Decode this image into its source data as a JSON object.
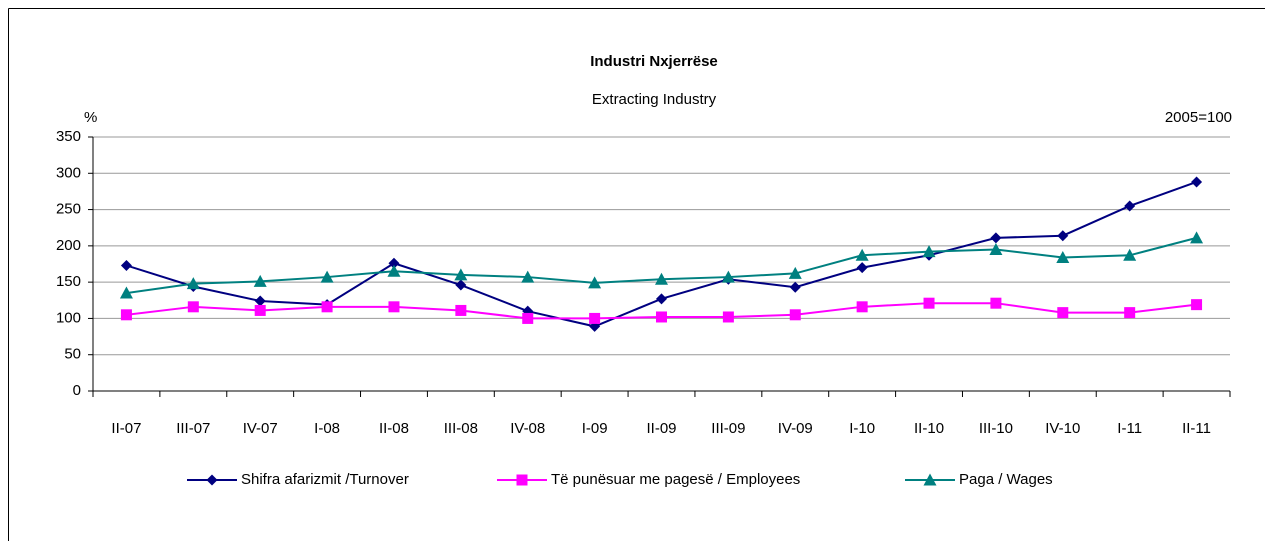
{
  "chart_data": {
    "type": "line",
    "title": "Industri Nxjerrëse",
    "subtitle": "Extracting Industry",
    "y_label": "%",
    "annotation": "2005=100",
    "categories": [
      "II-07",
      "III-07",
      "IV-07",
      "I-08",
      "II-08",
      "III-08",
      "IV-08",
      "I-09",
      "II-09",
      "III-09",
      "IV-09",
      "I-10",
      "II-10",
      "III-10",
      "IV-10",
      "I-11",
      "II-11"
    ],
    "series": [
      {
        "name": "Shifra afarizmit /Turnover",
        "color": "#000080",
        "marker": "diamond",
        "values": [
          173,
          144,
          124,
          119,
          176,
          146,
          110,
          89,
          127,
          154,
          143,
          170,
          187,
          211,
          214,
          255,
          288
        ]
      },
      {
        "name": "Të punësuar me pagesë / Employees",
        "color": "#ff00ff",
        "marker": "square",
        "values": [
          105,
          116,
          111,
          116,
          116,
          111,
          100,
          100,
          102,
          102,
          105,
          116,
          121,
          121,
          108,
          108,
          119
        ]
      },
      {
        "name": "Paga / Wages",
        "color": "#008080",
        "marker": "triangle",
        "values": [
          135,
          148,
          151,
          157,
          165,
          160,
          157,
          149,
          154,
          157,
          162,
          187,
          192,
          195,
          184,
          187,
          211
        ]
      }
    ],
    "ylim": [
      0,
      350
    ],
    "yticks": [
      0,
      50,
      100,
      150,
      200,
      250,
      300,
      350
    ],
    "grid": true
  }
}
